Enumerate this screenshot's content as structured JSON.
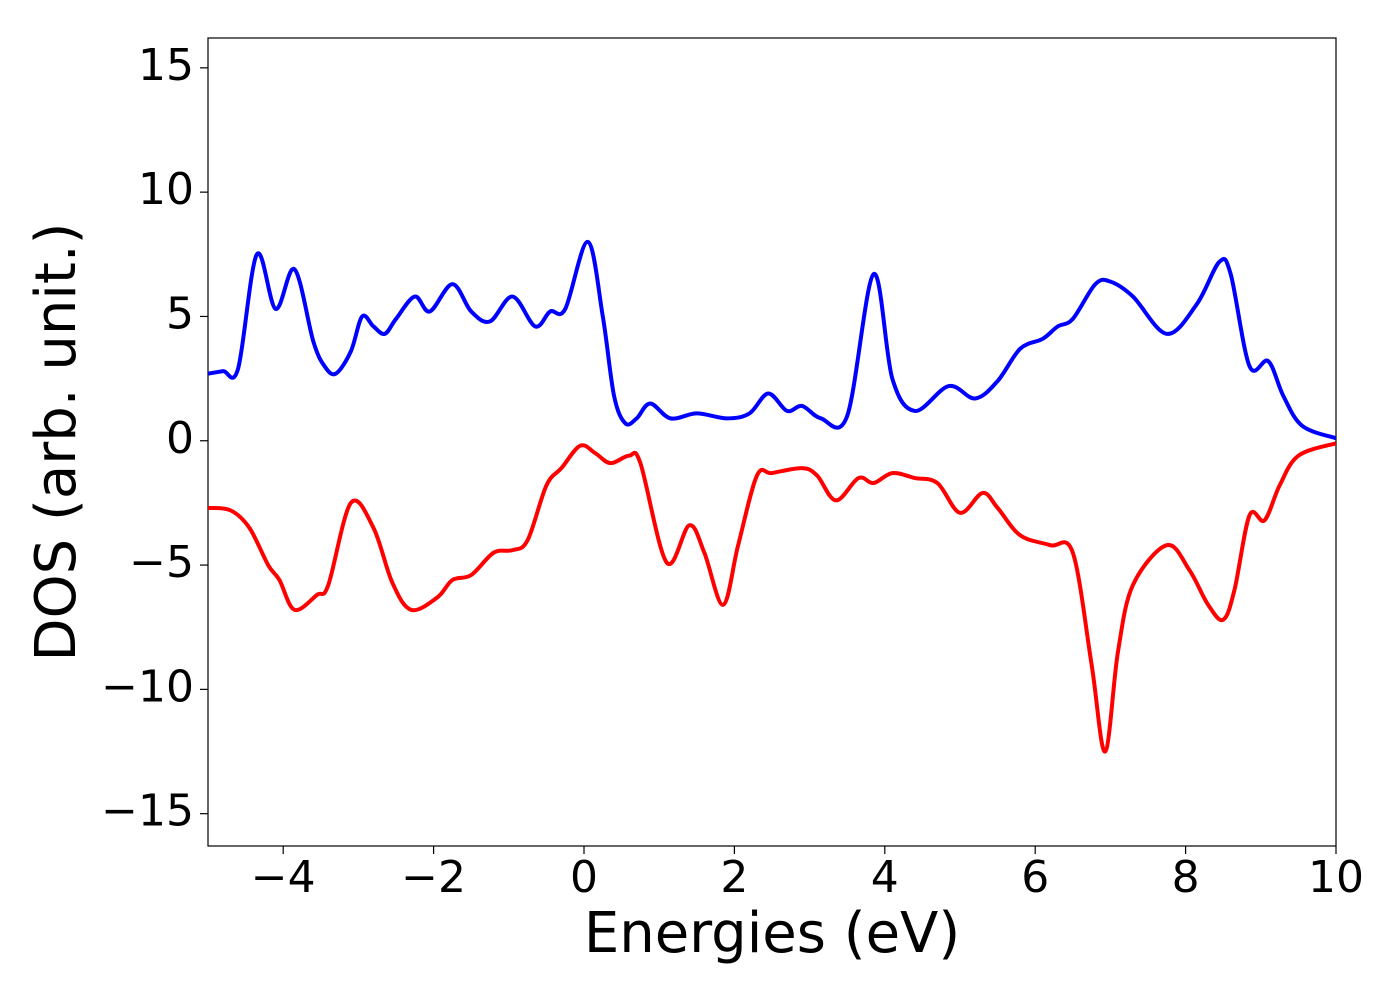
{
  "chart_data": {
    "type": "line",
    "xlabel": "Energies (eV)",
    "ylabel": "DOS (arb. unit.)",
    "xlim": [
      -5,
      10
    ],
    "ylim": [
      -16.3,
      16.2
    ],
    "xticks": [
      {
        "value": -4,
        "label": "−4"
      },
      {
        "value": -2,
        "label": "−2"
      },
      0,
      2,
      4,
      6,
      8,
      10
    ],
    "yticks": [
      {
        "value": -15,
        "label": "−15"
      },
      {
        "value": -10,
        "label": "−10"
      },
      {
        "value": -5,
        "label": "−5"
      },
      0,
      5,
      10,
      15
    ],
    "grid": false,
    "series": [
      {
        "color": "#0000ff",
        "x": [
          -5,
          -4.8,
          -4.6,
          -4.35,
          -4.1,
          -3.85,
          -3.6,
          -3.45,
          -3.3,
          -3.1,
          -2.95,
          -2.8,
          -2.65,
          -2.5,
          -2.25,
          -2.05,
          -1.75,
          -1.5,
          -1.25,
          -0.95,
          -0.65,
          -0.45,
          -0.25,
          0.05,
          0.25,
          0.4,
          0.55,
          0.7,
          0.88,
          1.15,
          1.5,
          1.9,
          2.2,
          2.45,
          2.7,
          2.9,
          3.15,
          3.5,
          3.85,
          4.1,
          4.4,
          4.85,
          5.2,
          5.5,
          5.8,
          6.1,
          6.3,
          6.5,
          6.8,
          7.0,
          7.3,
          7.75,
          8.15,
          8.45,
          8.6,
          8.85,
          9.1,
          9.3,
          9.55,
          10
        ],
        "values": [
          2.7,
          2.8,
          2.9,
          7.5,
          5.3,
          6.9,
          4.0,
          3.0,
          2.7,
          3.6,
          5.0,
          4.6,
          4.3,
          4.9,
          5.8,
          5.2,
          6.3,
          5.2,
          4.8,
          5.8,
          4.6,
          5.2,
          5.3,
          8.0,
          5.0,
          1.8,
          0.7,
          0.9,
          1.5,
          0.9,
          1.1,
          0.9,
          1.1,
          1.9,
          1.2,
          1.4,
          0.9,
          1.0,
          6.7,
          2.5,
          1.2,
          2.2,
          1.7,
          2.4,
          3.7,
          4.1,
          4.6,
          4.9,
          6.3,
          6.4,
          5.8,
          4.3,
          5.5,
          7.2,
          6.7,
          3.0,
          3.2,
          1.8,
          0.6,
          0.1
        ]
      },
      {
        "color": "#ff0000",
        "x": [
          -5,
          -4.7,
          -4.45,
          -4.2,
          -4.05,
          -3.85,
          -3.55,
          -3.4,
          -3.1,
          -2.8,
          -2.55,
          -2.3,
          -1.95,
          -1.75,
          -1.5,
          -1.2,
          -0.95,
          -0.75,
          -0.5,
          -0.3,
          -0.05,
          0.15,
          0.35,
          0.6,
          0.75,
          1.1,
          1.4,
          1.6,
          1.85,
          2.05,
          2.3,
          2.5,
          2.9,
          3.1,
          3.35,
          3.65,
          3.85,
          4.1,
          4.4,
          4.7,
          5.0,
          5.3,
          5.5,
          5.8,
          6.2,
          6.5,
          6.75,
          6.93,
          7.1,
          7.3,
          7.75,
          8.05,
          8.3,
          8.5,
          8.65,
          8.85,
          9.05,
          9.25,
          9.5,
          10
        ],
        "values": [
          -2.7,
          -2.8,
          -3.5,
          -5.0,
          -5.6,
          -6.8,
          -6.2,
          -5.8,
          -2.5,
          -3.5,
          -5.7,
          -6.8,
          -6.3,
          -5.6,
          -5.4,
          -4.5,
          -4.4,
          -4.0,
          -1.8,
          -1.1,
          -0.2,
          -0.5,
          -0.9,
          -0.6,
          -0.9,
          -4.9,
          -3.4,
          -4.5,
          -6.6,
          -4.2,
          -1.4,
          -1.3,
          -1.1,
          -1.4,
          -2.4,
          -1.5,
          -1.7,
          -1.3,
          -1.5,
          -1.7,
          -2.9,
          -2.1,
          -2.7,
          -3.8,
          -4.2,
          -4.5,
          -9.0,
          -12.5,
          -8.5,
          -5.8,
          -4.2,
          -5.2,
          -6.6,
          -7.2,
          -6.0,
          -3.0,
          -3.2,
          -1.8,
          -0.6,
          -0.1
        ]
      }
    ]
  }
}
